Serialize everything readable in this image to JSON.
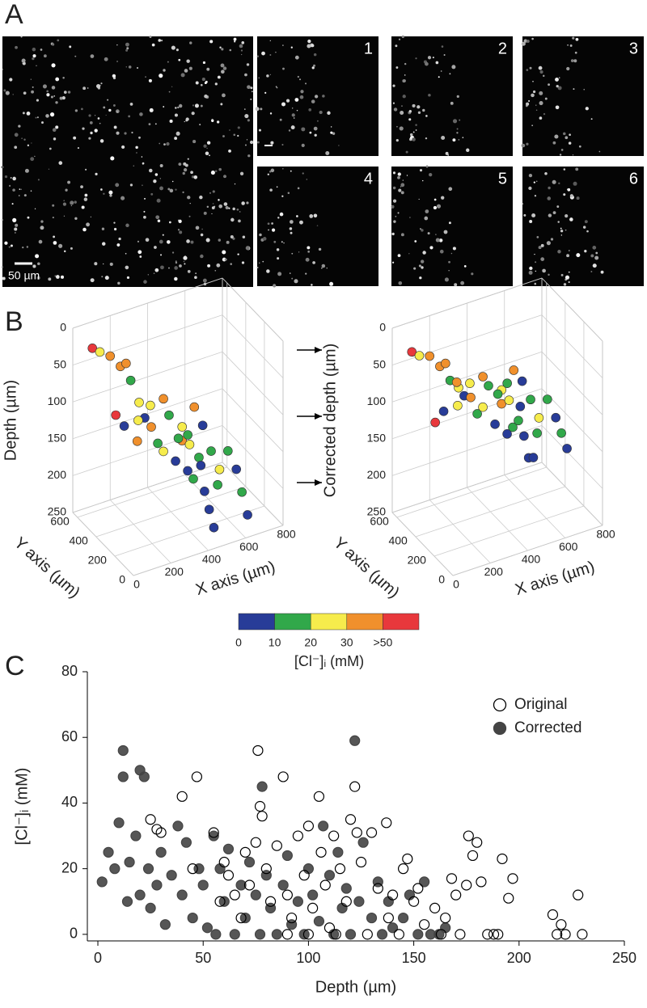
{
  "panel_labels": [
    "A",
    "B",
    "C"
  ],
  "panel_a": {
    "inset_labels": [
      "1",
      "2",
      "3",
      "4",
      "5",
      "6"
    ],
    "scale_label": "50 µm"
  },
  "arrows": 3,
  "chart_data": [
    {
      "type": "scatter3d",
      "x_label": "X axis (µm)",
      "y_label": "Y axis (µm)",
      "depth_label": "Depth (µm)",
      "xlim": [
        0,
        800
      ],
      "xticks": [
        0,
        200,
        400,
        600,
        800
      ],
      "ylim": [
        0,
        650
      ],
      "yticks": [
        0,
        200,
        400,
        600
      ],
      "zlim": [
        0,
        250
      ],
      "zticks": [
        0,
        50,
        100,
        150,
        200,
        250
      ],
      "points": {
        "x": [
          30,
          60,
          100,
          130,
          150,
          160,
          180,
          200,
          220,
          240,
          260,
          280,
          300,
          320,
          340,
          360,
          380,
          400,
          420,
          440,
          460,
          480,
          500,
          520,
          540,
          560,
          580,
          600,
          620,
          640,
          200,
          250,
          300,
          350,
          400,
          450,
          500,
          550,
          180,
          280
        ],
        "y": [
          500,
          480,
          450,
          400,
          380,
          350,
          300,
          280,
          250,
          220,
          200,
          180,
          150,
          120,
          100,
          80,
          60,
          40,
          30,
          20,
          400,
          380,
          350,
          300,
          250,
          200,
          150,
          100,
          80,
          60,
          500,
          450,
          420,
          380,
          320,
          300,
          280,
          200,
          550,
          520
        ],
        "depth": [
          10,
          15,
          20,
          30,
          25,
          45,
          70,
          90,
          100,
          120,
          130,
          80,
          140,
          110,
          150,
          160,
          130,
          175,
          200,
          225,
          140,
          150,
          110,
          130,
          160,
          180,
          150,
          170,
          200,
          230,
          130,
          120,
          100,
          90,
          140,
          150,
          180,
          200,
          120,
          160
        ],
        "cl": [
          55,
          25,
          35,
          40,
          45,
          15,
          22,
          5,
          35,
          12,
          25,
          18,
          8,
          32,
          5,
          15,
          12,
          5,
          8,
          3,
          28,
          15,
          35,
          2,
          18,
          25,
          12,
          8,
          15,
          2,
          5,
          20,
          28,
          38,
          12,
          22,
          8,
          18,
          55,
          30
        ]
      }
    },
    {
      "type": "scatter3d",
      "x_label": "X axis (µm)",
      "y_label": "Y axis (µm)",
      "depth_label": "Corrected depth (µm)",
      "xlim": [
        0,
        800
      ],
      "xticks": [
        0,
        200,
        400,
        600,
        800
      ],
      "ylim": [
        0,
        650
      ],
      "yticks": [
        0,
        200,
        400,
        600
      ],
      "zlim": [
        0,
        250
      ],
      "zticks": [
        0,
        50,
        100,
        150,
        200,
        250
      ],
      "points": {
        "x": [
          30,
          60,
          100,
          130,
          150,
          160,
          180,
          200,
          220,
          240,
          260,
          280,
          300,
          320,
          340,
          360,
          380,
          400,
          420,
          440,
          460,
          480,
          500,
          520,
          540,
          560,
          580,
          600,
          620,
          640,
          200,
          250,
          300,
          350,
          400,
          450,
          500,
          550,
          180,
          280
        ],
        "y": [
          500,
          480,
          450,
          400,
          380,
          350,
          300,
          280,
          250,
          220,
          200,
          180,
          150,
          120,
          100,
          80,
          60,
          40,
          30,
          20,
          400,
          380,
          350,
          300,
          250,
          200,
          150,
          100,
          80,
          60,
          500,
          450,
          420,
          380,
          320,
          300,
          280,
          200,
          550,
          520
        ],
        "depth": [
          15,
          20,
          20,
          30,
          25,
          45,
          50,
          60,
          60,
          80,
          70,
          40,
          90,
          60,
          100,
          90,
          80,
          100,
          130,
          130,
          90,
          80,
          60,
          70,
          90,
          110,
          80,
          100,
          120,
          140,
          110,
          100,
          70,
          60,
          80,
          90,
          100,
          130,
          130,
          80
        ],
        "cl": [
          55,
          25,
          35,
          40,
          45,
          15,
          22,
          5,
          35,
          12,
          25,
          18,
          8,
          32,
          5,
          15,
          12,
          5,
          8,
          3,
          28,
          15,
          35,
          2,
          18,
          25,
          12,
          8,
          15,
          2,
          5,
          20,
          28,
          38,
          12,
          22,
          8,
          18,
          55,
          30
        ]
      }
    },
    {
      "type": "colorbar",
      "label": "[Cl⁻]ᵢ (mM)",
      "ticks": [
        0,
        10,
        20,
        30,
        {
          "value": 50,
          "label": ">50"
        }
      ],
      "colors": [
        "#283c98",
        "#31a84a",
        "#f6ec4c",
        "#f0902c",
        "#e8383c"
      ]
    },
    {
      "type": "scatter",
      "xlabel": "Depth (µm)",
      "ylabel": "[Cl⁻]ᵢ (mM)",
      "xlim": [
        -5,
        250
      ],
      "xticks": [
        0,
        50,
        100,
        150,
        200,
        250
      ],
      "ylim": [
        -2,
        80
      ],
      "yticks": [
        0,
        20,
        40,
        60,
        80
      ],
      "legend": "upper right",
      "series": [
        {
          "name": "Original",
          "color": "#000000",
          "filled": false,
          "x": [
            25,
            28,
            30,
            40,
            47,
            45,
            55,
            58,
            60,
            62,
            65,
            68,
            70,
            72,
            75,
            76,
            77,
            78,
            80,
            82,
            85,
            88,
            90,
            92,
            95,
            98,
            100,
            102,
            105,
            106,
            108,
            110,
            112,
            115,
            118,
            120,
            122,
            123,
            125,
            128,
            130,
            133,
            137,
            138,
            140,
            143,
            145,
            147,
            150,
            152,
            155,
            160,
            163,
            165,
            168,
            170,
            172,
            175,
            176,
            178,
            180,
            182,
            185,
            188,
            190,
            192,
            195,
            197,
            216,
            218,
            220,
            222,
            228,
            230,
            113,
            100,
            90
          ],
          "values": [
            35,
            32,
            31,
            42,
            48,
            20,
            31,
            10,
            22,
            18,
            12,
            5,
            25,
            15,
            28,
            56,
            39,
            36,
            20,
            10,
            27,
            48,
            12,
            5,
            30,
            18,
            33,
            8,
            42,
            25,
            15,
            2,
            30,
            20,
            10,
            35,
            45,
            31,
            22,
            0,
            31,
            14,
            34,
            5,
            12,
            0,
            20,
            23,
            10,
            14,
            3,
            8,
            0,
            5,
            17,
            12,
            0,
            15,
            30,
            24,
            28,
            16,
            0,
            0,
            0,
            23,
            11,
            17,
            6,
            0,
            3,
            0,
            12,
            0,
            0,
            0,
            0
          ]
        },
        {
          "name": "Corrected",
          "color": "#444444",
          "filled": true,
          "x": [
            2,
            5,
            8,
            10,
            12,
            12,
            14,
            15,
            18,
            20,
            20,
            22,
            24,
            25,
            28,
            30,
            32,
            35,
            38,
            40,
            42,
            45,
            48,
            50,
            52,
            55,
            56,
            58,
            60,
            62,
            65,
            68,
            70,
            72,
            75,
            77,
            78,
            80,
            82,
            85,
            88,
            90,
            92,
            95,
            98,
            100,
            102,
            105,
            107,
            110,
            112,
            114,
            116,
            118,
            120,
            122,
            124,
            126,
            130,
            133,
            135,
            138,
            140,
            145,
            148,
            152,
            155,
            158,
            162,
            165
          ],
          "values": [
            16,
            25,
            20,
            34,
            56,
            48,
            10,
            22,
            30,
            50,
            12,
            48,
            20,
            8,
            15,
            25,
            3,
            18,
            33,
            12,
            28,
            5,
            20,
            15,
            2,
            30,
            0,
            20,
            10,
            26,
            0,
            15,
            5,
            22,
            12,
            0,
            45,
            18,
            8,
            0,
            15,
            24,
            3,
            10,
            0,
            20,
            12,
            4,
            33,
            18,
            0,
            25,
            8,
            14,
            0,
            59,
            10,
            28,
            5,
            16,
            0,
            10,
            2,
            5,
            12,
            0,
            16,
            0,
            0,
            2
          ]
        }
      ]
    }
  ]
}
